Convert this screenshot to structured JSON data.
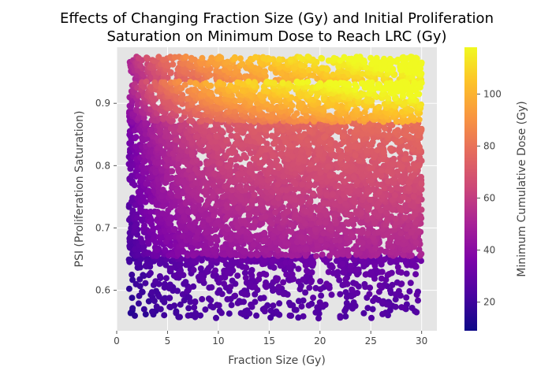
{
  "chart_data": {
    "type": "scatter",
    "title": [
      "Effects of Changing Fraction Size (Gy) and Initial Proliferation",
      "Saturation on Minimum Dose to Reach LRC (Gy)"
    ],
    "xlabel": "Fraction Size (Gy)",
    "ylabel": "PSI (Proliferation Saturation)",
    "xlim": [
      0,
      31.5
    ],
    "ylim": [
      0.535,
      0.99
    ],
    "xticks": [
      0,
      5,
      10,
      15,
      20,
      25,
      30
    ],
    "yticks": [
      0.6,
      0.7,
      0.8,
      0.9
    ],
    "ytick_labels": [
      "0.6",
      "0.7",
      "0.8",
      "0.9"
    ],
    "grid": true,
    "background": "#e5e5e5",
    "colormap": "plasma",
    "colorbar": {
      "label": "Minimum Cumulative Dose (Gy)",
      "range": [
        9,
        118
      ],
      "ticks": [
        20,
        40,
        60,
        80,
        100
      ]
    },
    "point_regions": {
      "dense_x_range": [
        1.2,
        30
      ],
      "dense_psi_range": [
        0.65,
        0.975
      ],
      "sparse_psi_range": [
        0.555,
        0.65
      ],
      "dose_min": 9,
      "dose_max": 118,
      "point_count": 6000
    }
  }
}
